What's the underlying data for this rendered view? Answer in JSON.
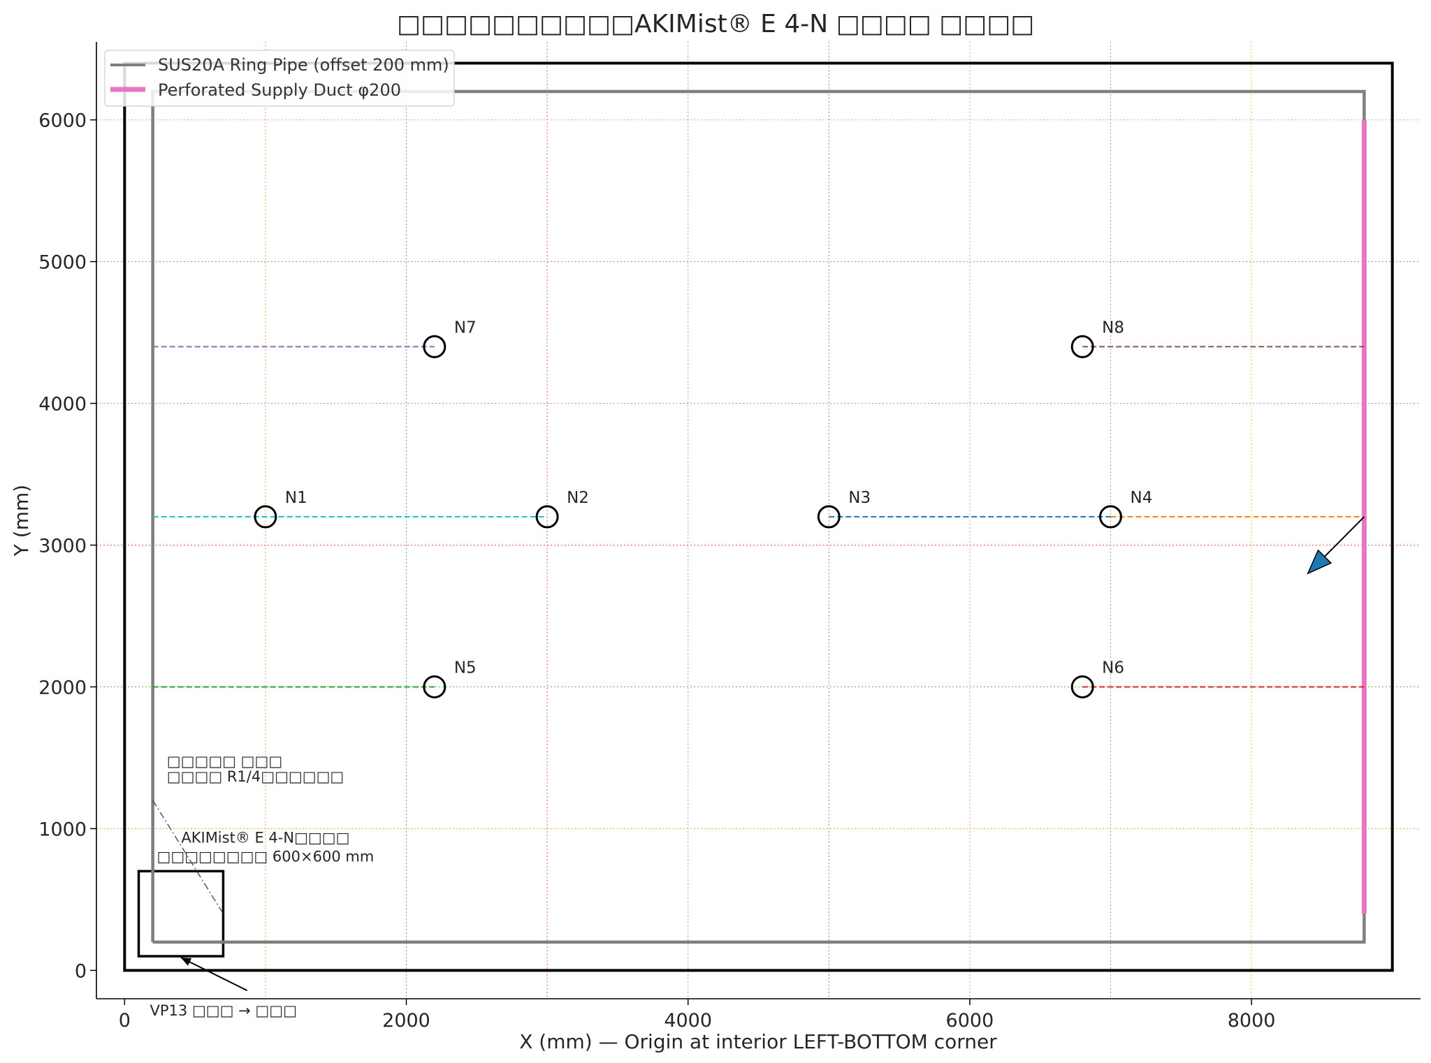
{
  "chart_data": {
    "type": "scatter",
    "title": "□□□□□□□□□□AKIMist® E 4-N □□□□ □□□□",
    "xlabel": "X (mm)  —  Origin at interior LEFT-BOTTOM corner",
    "ylabel": "Y (mm)",
    "xlim": [
      -200,
      9200
    ],
    "ylim": [
      -200,
      6550
    ],
    "xticks": [
      0,
      2000,
      4000,
      6000,
      8000
    ],
    "yticks": [
      0,
      1000,
      2000,
      3000,
      4000,
      5000,
      6000
    ],
    "grid": true,
    "grid_x": [
      1000,
      2000,
      3000,
      4000,
      5000,
      6000,
      7000,
      8000
    ],
    "grid_y": [
      1000,
      2000,
      3000,
      4000,
      5000,
      6000
    ],
    "grid_colors": [
      "#ff7f0e",
      "#2ca02c",
      "#d62728",
      "#9467bd",
      "#8c564b",
      "#e377c2",
      "#7f7f7f",
      "#bcbd22"
    ],
    "legend_position": "top-left",
    "room": {
      "x0": 0,
      "y0": 0,
      "x1": 9000,
      "y1": 6400
    },
    "series": [
      {
        "name": "SUS20A Ring Pipe (offset 200 mm)",
        "color": "#7f7f7f",
        "points": [
          [
            200,
            200
          ],
          [
            8800,
            200
          ],
          [
            8800,
            6200
          ],
          [
            200,
            6200
          ],
          [
            200,
            200
          ]
        ]
      },
      {
        "name": "Perforated Supply Duct φ200",
        "color": "#e377c2",
        "points": [
          [
            8800,
            400
          ],
          [
            8800,
            6000
          ]
        ]
      }
    ],
    "nozzles": [
      {
        "label": "N1",
        "x": 1000,
        "y": 3200
      },
      {
        "label": "N2",
        "x": 3000,
        "y": 3200
      },
      {
        "label": "N3",
        "x": 5000,
        "y": 3200
      },
      {
        "label": "N4",
        "x": 7000,
        "y": 3200
      },
      {
        "label": "N5",
        "x": 2200,
        "y": 2000
      },
      {
        "label": "N6",
        "x": 6800,
        "y": 2000
      },
      {
        "label": "N7",
        "x": 2200,
        "y": 4400
      },
      {
        "label": "N8",
        "x": 6800,
        "y": 4400
      }
    ],
    "branches": [
      {
        "from": [
          200,
          3200
        ],
        "to": [
          3000,
          3200
        ],
        "color": "#17becf"
      },
      {
        "from": [
          5000,
          3200
        ],
        "to": [
          7000,
          3200
        ],
        "color": "#1f77b4"
      },
      {
        "from": [
          7000,
          3200
        ],
        "to": [
          8800,
          3200
        ],
        "color": "#ff7f0e"
      },
      {
        "from": [
          200,
          2000
        ],
        "to": [
          2200,
          2000
        ],
        "color": "#2ca02c"
      },
      {
        "from": [
          6800,
          2000
        ],
        "to": [
          8800,
          2000
        ],
        "color": "#d62728"
      },
      {
        "from": [
          200,
          4400
        ],
        "to": [
          2200,
          4400
        ],
        "color": "#9467bd"
      },
      {
        "from": [
          6800,
          4400
        ],
        "to": [
          8800,
          4400
        ],
        "color": "#8c564b"
      }
    ],
    "unit_box": {
      "x0": 100,
      "y0": 100,
      "x1": 700,
      "y1": 700
    },
    "flow_arrow": {
      "from": [
        8800,
        3200
      ],
      "to": [
        8400,
        2800
      ],
      "color": "#1f77b4"
    },
    "annotations": [
      {
        "lines": [
          "AKIMist® E 4-N□□□□",
          "□□□□□□□□ 600×600 mm"
        ],
        "x": 1000,
        "y": 1000
      },
      {
        "lines": [
          "□□□□□ □□□",
          "□□□□ R1/4□□□□□□"
        ],
        "x": 300,
        "y": 1500
      },
      {
        "lines": [
          "VP13 □□□ → □□□"
        ],
        "x": 900,
        "y": -280
      }
    ]
  }
}
